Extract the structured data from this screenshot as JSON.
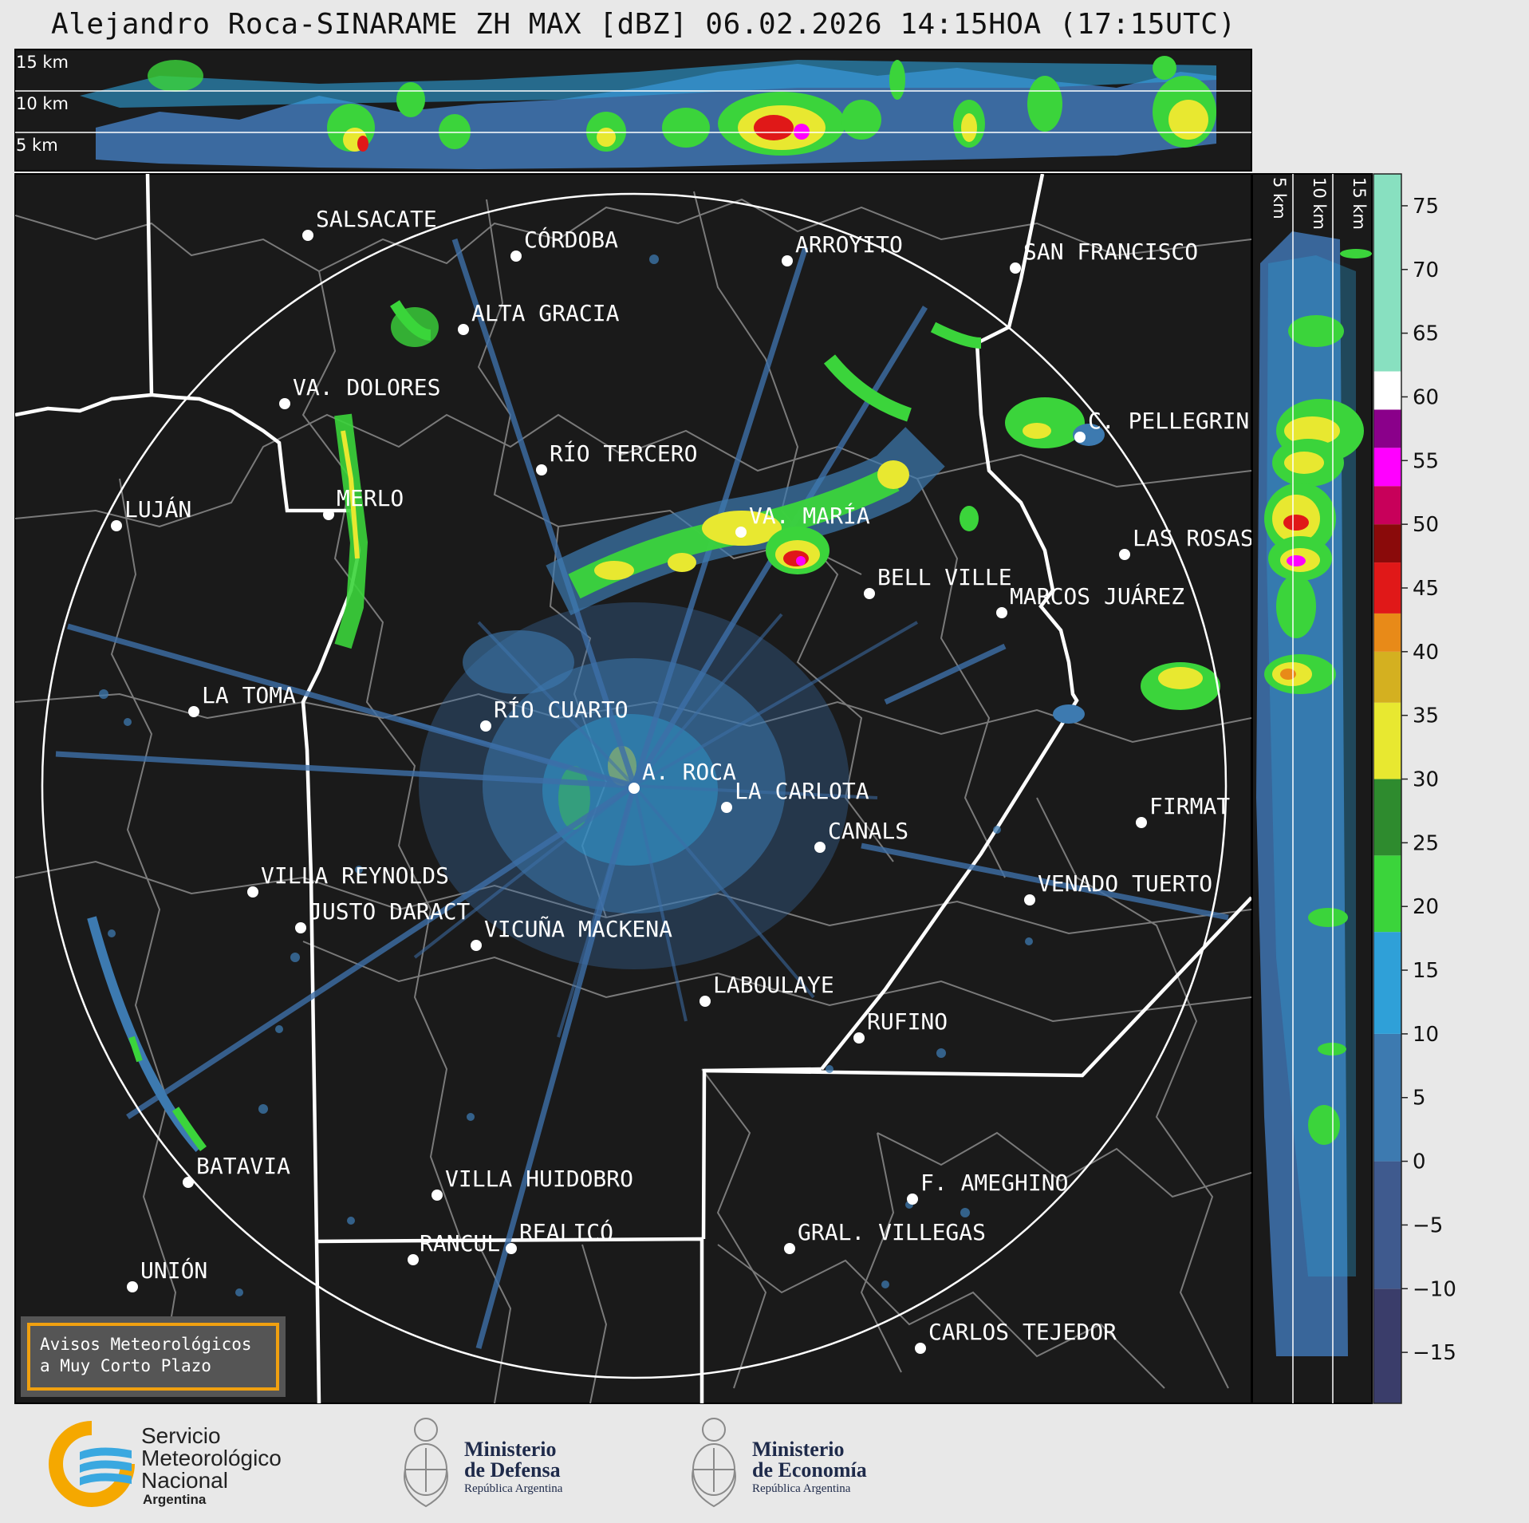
{
  "header": {
    "title": "Alejandro Roca-SINARAME ZH MAX [dBZ] 06.02.2026 14:15HOA (17:15UTC)"
  },
  "top_profile": {
    "height_labels": [
      "15 km",
      "10 km",
      "5 km"
    ]
  },
  "side_profile": {
    "height_labels": [
      "5 km",
      "10 km",
      "15 km"
    ]
  },
  "colorbar": {
    "ticks": [
      "75",
      "70",
      "65",
      "60",
      "55",
      "50",
      "45",
      "40",
      "35",
      "30",
      "25",
      "20",
      "15",
      "10",
      "5",
      "0",
      "−5",
      "−10",
      "−15"
    ],
    "colors": {
      "c1": "#3a3d6a",
      "c2": "#3f5a8e",
      "c3": "#3d7ab0",
      "c4": "#2fa0d8",
      "c5": "#3bd43b",
      "c6": "#2e8b2e",
      "c7": "#e8e830",
      "c8": "#d4b020",
      "c9": "#e88a18",
      "c10": "#e01818",
      "c11": "#8a0a0a",
      "c12": "#c8005a",
      "c13": "#ff00ff",
      "c14": "#8a008a",
      "c15": "#ffffff",
      "c16": "#88e0c0"
    }
  },
  "map": {
    "cities": [
      {
        "name": "SALSACATE"
      },
      {
        "name": "CÓRDOBA"
      },
      {
        "name": "ARROYITO"
      },
      {
        "name": "SAN FRANCISCO"
      },
      {
        "name": "ALTA GRACIA"
      },
      {
        "name": "VA. DOLORES"
      },
      {
        "name": "C. PELLEGRINI"
      },
      {
        "name": "RÍO TERCERO"
      },
      {
        "name": "LUJÁN"
      },
      {
        "name": "MERLO"
      },
      {
        "name": "VA. MARÍA"
      },
      {
        "name": "LAS ROSAS"
      },
      {
        "name": "BELL VILLE"
      },
      {
        "name": "MARCOS JUÁREZ"
      },
      {
        "name": "LA TOMA"
      },
      {
        "name": "RÍO CUARTO"
      },
      {
        "name": "A. ROCA"
      },
      {
        "name": "LA CARLOTA"
      },
      {
        "name": "FIRMAT"
      },
      {
        "name": "CANALS"
      },
      {
        "name": "VILLA REYNOLDS"
      },
      {
        "name": "VENADO TUERTO"
      },
      {
        "name": "JUSTO DARACT"
      },
      {
        "name": "VICUÑA MACKENA"
      },
      {
        "name": "LABOULAYE"
      },
      {
        "name": "RUFINO"
      },
      {
        "name": "BATAVIA"
      },
      {
        "name": "VILLA HUIDOBRO"
      },
      {
        "name": "F. AMEGHINO"
      },
      {
        "name": "REALICÓ"
      },
      {
        "name": "RANCUL"
      },
      {
        "name": "GRAL. VILLEGAS"
      },
      {
        "name": "UNIÓN"
      },
      {
        "name": "CARLOS TEJEDOR"
      }
    ]
  },
  "warning": {
    "line1": "Avisos Meteorológicos",
    "line2": "a Muy Corto Plazo"
  },
  "logos": {
    "smn_line1": "Servicio",
    "smn_line2": "Meteorológico",
    "smn_line3": "Nacional",
    "smn_line4": "Argentina",
    "defensa_line1": "Ministerio",
    "defensa_line2": "de Defensa",
    "defensa_line3": "República Argentina",
    "economia_line1": "Ministerio",
    "economia_line2": "de Economía",
    "economia_line3": "República Argentina"
  }
}
